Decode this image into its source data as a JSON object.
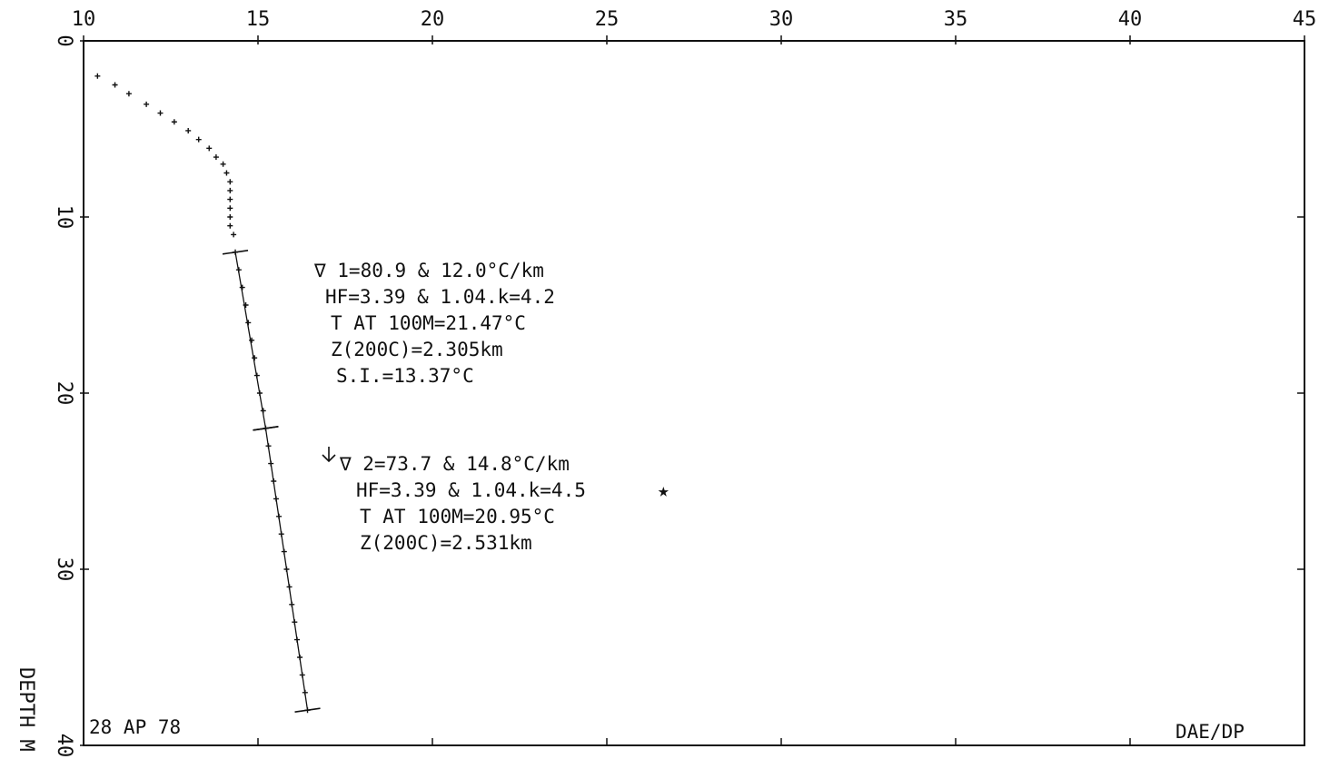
{
  "chart_data": {
    "type": "scatter",
    "x_ticks": [
      "10",
      "15",
      "20",
      "25",
      "30",
      "35",
      "40",
      "45"
    ],
    "y_ticks": [
      "0",
      "10",
      "20",
      "30",
      "40"
    ],
    "xlim": [
      10,
      45
    ],
    "ylim": [
      0,
      40
    ],
    "y_inverted": true,
    "x_axis_position": "top",
    "ylabel": "DEPTH M",
    "corner_label": "DAE/DP",
    "date_label": "28 AP 78",
    "grid": false,
    "series": [
      {
        "points": [
          [
            10.4,
            2.0
          ],
          [
            10.9,
            2.5
          ],
          [
            11.3,
            3.0
          ],
          [
            11.8,
            3.6
          ],
          [
            12.2,
            4.1
          ],
          [
            12.6,
            4.6
          ],
          [
            13.0,
            5.1
          ],
          [
            13.3,
            5.6
          ],
          [
            13.6,
            6.1
          ],
          [
            13.8,
            6.6
          ],
          [
            14.0,
            7.0
          ],
          [
            14.1,
            7.5
          ],
          [
            14.2,
            8.0
          ],
          [
            14.2,
            8.5
          ],
          [
            14.2,
            9.0
          ],
          [
            14.2,
            9.5
          ],
          [
            14.2,
            10.0
          ],
          [
            14.2,
            10.5
          ],
          [
            14.3,
            11.0
          ],
          [
            14.35,
            12.0
          ],
          [
            14.45,
            13.0
          ],
          [
            14.55,
            14.0
          ],
          [
            14.65,
            15.0
          ],
          [
            14.72,
            16.0
          ],
          [
            14.82,
            17.0
          ],
          [
            14.9,
            18.0
          ],
          [
            14.97,
            19.0
          ],
          [
            15.05,
            20.0
          ],
          [
            15.15,
            21.0
          ],
          [
            15.22,
            22.0
          ],
          [
            15.3,
            23.0
          ],
          [
            15.37,
            24.0
          ],
          [
            15.45,
            25.0
          ],
          [
            15.52,
            26.0
          ],
          [
            15.6,
            27.0
          ],
          [
            15.67,
            28.0
          ],
          [
            15.75,
            29.0
          ],
          [
            15.82,
            30.0
          ],
          [
            15.9,
            31.0
          ],
          [
            15.97,
            32.0
          ],
          [
            16.05,
            33.0
          ],
          [
            16.12,
            34.0
          ],
          [
            16.2,
            35.0
          ],
          [
            16.27,
            36.0
          ],
          [
            16.35,
            37.0
          ],
          [
            16.42,
            38.0
          ]
        ]
      }
    ],
    "fit_segments": [
      {
        "from": [
          14.35,
          12.0
        ],
        "to": [
          15.22,
          22.0
        ]
      },
      {
        "from": [
          15.22,
          22.0
        ],
        "to": [
          16.42,
          38.0
        ]
      }
    ],
    "annotations": {
      "block1": [
        "∇ 1=80.9 & 12.0°C/km",
        "HF=3.39 & 1.04.k=4.2",
        "T AT 100M=21.47°C",
        "Z(200C)=2.305km",
        "S.I.=13.37°C"
      ],
      "block2": [
        "∇ 2=73.7 & 14.8°C/km",
        "HF=3.39 & 1.04.k=4.5",
        "T AT 100M=20.95°C",
        "Z(200C)=2.531km"
      ]
    }
  }
}
